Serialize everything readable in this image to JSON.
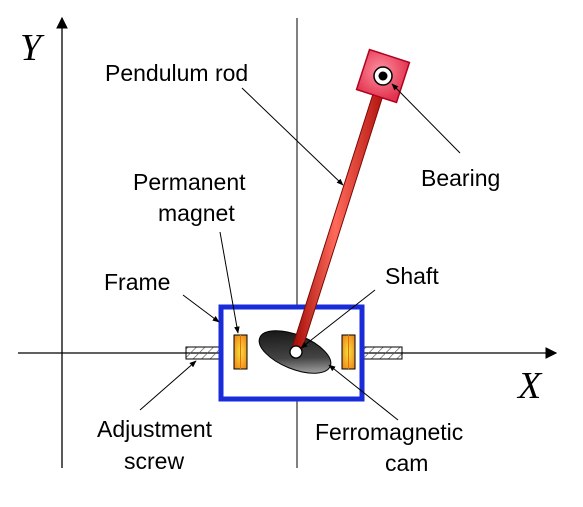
{
  "axes": {
    "x_label": "X",
    "y_label": "Y"
  },
  "labels": {
    "pendulum_rod": "Pendulum rod",
    "bearing": "Bearing",
    "permanent_magnet": [
      "Permanent",
      "magnet"
    ],
    "frame": "Frame",
    "shaft": "Shaft",
    "adjustment_screw": [
      "Adjustment",
      "screw"
    ],
    "ferromagnetic_cam": [
      "Ferromagnetic",
      "cam"
    ]
  },
  "colors": {
    "frame_stroke": "#1a2bd9",
    "rod": "#e0231b",
    "bearing_block": "#e8415a",
    "magnet_outer": "#f39a21",
    "magnet_inner": "#f7e23a",
    "cam": "#111111",
    "screw_hatch": "#555555"
  }
}
